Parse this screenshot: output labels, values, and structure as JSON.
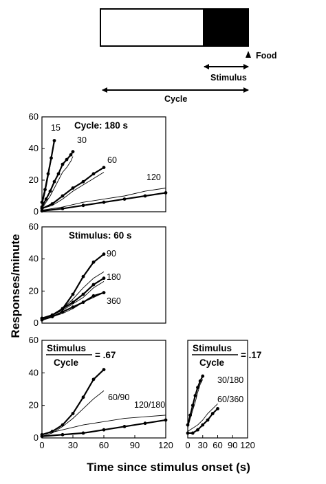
{
  "schematic": {
    "food_label": "Food",
    "stimulus_label": "Stimulus",
    "cycle_label": "Cycle"
  },
  "axes": {
    "ylabel": "Responses/minute",
    "xlabel": "Time since stimulus onset (s)"
  },
  "chart_data": [
    {
      "type": "line",
      "panel": "top",
      "title": "Cycle: 180 s",
      "xlim": [
        0,
        120
      ],
      "ylim": [
        0,
        60
      ],
      "xticks": [],
      "yticks": [
        "0",
        "20",
        "40",
        "60"
      ],
      "series": [
        {
          "name": "15",
          "label": "15",
          "data_x": [
            0,
            3,
            6,
            9,
            12
          ],
          "data_y": [
            6,
            14,
            24,
            34,
            45
          ],
          "model_x": [
            0,
            3,
            6,
            9,
            12
          ],
          "model_y": [
            4,
            12,
            22,
            33,
            44
          ]
        },
        {
          "name": "30",
          "label": "30",
          "data_x": [
            0,
            4,
            8,
            12,
            16,
            20,
            24,
            28,
            30
          ],
          "data_y": [
            3,
            8,
            13,
            19,
            24,
            30,
            33,
            36,
            38
          ],
          "model_x": [
            0,
            4,
            8,
            12,
            16,
            20,
            24,
            28,
            30
          ],
          "model_y": [
            2,
            6,
            10,
            15,
            20,
            25,
            28,
            32,
            35
          ]
        },
        {
          "name": "60",
          "label": "60",
          "data_x": [
            0,
            10,
            20,
            30,
            40,
            50,
            60
          ],
          "data_y": [
            2,
            5,
            10,
            15,
            19,
            24,
            28
          ],
          "model_x": [
            0,
            10,
            20,
            30,
            40,
            50,
            60
          ],
          "model_y": [
            2,
            4,
            8,
            13,
            17,
            21,
            25
          ]
        },
        {
          "name": "120",
          "label": "120",
          "data_x": [
            0,
            20,
            40,
            60,
            80,
            100,
            120
          ],
          "data_y": [
            0.5,
            2,
            4,
            6,
            8,
            10,
            12
          ],
          "model_x": [
            0,
            20,
            40,
            60,
            80,
            100,
            120
          ],
          "model_y": [
            1,
            3,
            6,
            8,
            10,
            13,
            15
          ]
        }
      ]
    },
    {
      "type": "line",
      "panel": "middle",
      "title": "Stimulus: 60 s",
      "xlim": [
        0,
        120
      ],
      "ylim": [
        0,
        60
      ],
      "xticks": [],
      "yticks": [
        "0",
        "20",
        "40",
        "60"
      ],
      "series": [
        {
          "name": "90",
          "label": "90",
          "data_x": [
            0,
            10,
            20,
            30,
            40,
            50,
            60
          ],
          "data_y": [
            3,
            5,
            9,
            18,
            29,
            38,
            43
          ],
          "model_x": [
            0,
            10,
            20,
            30,
            40,
            50,
            60
          ],
          "model_y": [
            3,
            5,
            9,
            15,
            22,
            28,
            32
          ]
        },
        {
          "name": "180",
          "label": "180",
          "data_x": [
            0,
            10,
            20,
            30,
            40,
            50,
            60
          ],
          "data_y": [
            3,
            5,
            9,
            13,
            18,
            24,
            28
          ],
          "model_x": [
            0,
            10,
            20,
            30,
            40,
            50,
            60
          ],
          "model_y": [
            3,
            5,
            8,
            12,
            16,
            22,
            26
          ]
        },
        {
          "name": "360",
          "label": "360",
          "data_x": [
            0,
            10,
            20,
            30,
            40,
            50,
            60
          ],
          "data_y": [
            2,
            4,
            7,
            10,
            13,
            17,
            19
          ],
          "model_x": [
            0,
            10,
            20,
            30,
            40,
            50,
            60
          ],
          "model_y": [
            2,
            4,
            6,
            9,
            13,
            16,
            19
          ]
        }
      ]
    },
    {
      "type": "line",
      "panel": "bottom-left",
      "title_top": "Stimulus",
      "title_bottom": "Cycle",
      "title_value": "= .67",
      "xlim": [
        0,
        120
      ],
      "ylim": [
        0,
        60
      ],
      "xticks": [
        "0",
        "30",
        "60",
        "90",
        "120"
      ],
      "yticks": [
        "0",
        "20",
        "40",
        "60"
      ],
      "series": [
        {
          "name": "60/90",
          "label": "60/90",
          "data_x": [
            0,
            10,
            20,
            30,
            40,
            50,
            60
          ],
          "data_y": [
            2,
            4,
            8,
            15,
            25,
            36,
            42
          ],
          "model_x": [
            0,
            10,
            20,
            30,
            40,
            50,
            60
          ],
          "model_y": [
            1,
            3,
            7,
            12,
            18,
            24,
            29
          ]
        },
        {
          "name": "120/180",
          "label": "120/180",
          "data_x": [
            0,
            20,
            40,
            60,
            80,
            100,
            120
          ],
          "data_y": [
            1,
            2,
            3,
            5,
            7,
            9,
            11
          ],
          "model_x": [
            0,
            20,
            40,
            60,
            80,
            100,
            120
          ],
          "model_y": [
            2,
            5,
            8,
            10,
            12,
            13,
            14
          ]
        }
      ]
    },
    {
      "type": "line",
      "panel": "bottom-right",
      "title_top": "Stimulus",
      "title_bottom": "Cycle",
      "title_value": "= .17",
      "xlim": [
        0,
        120
      ],
      "ylim": [
        0,
        60
      ],
      "xticks": [
        "0",
        "30",
        "60",
        "90",
        "120"
      ],
      "yticks": [],
      "series": [
        {
          "name": "30/180",
          "label": "30/180",
          "data_x": [
            0,
            5,
            10,
            15,
            20,
            25,
            30
          ],
          "data_y": [
            8,
            14,
            20,
            26,
            31,
            35,
            38
          ],
          "model_x": [
            0,
            5,
            10,
            15,
            20,
            25,
            30
          ],
          "model_y": [
            6,
            12,
            17,
            22,
            28,
            33,
            36
          ]
        },
        {
          "name": "60/360",
          "label": "60/360",
          "data_x": [
            0,
            10,
            20,
            30,
            40,
            50,
            60
          ],
          "data_y": [
            3,
            3,
            5,
            8,
            11,
            15,
            18
          ],
          "model_x": [
            0,
            10,
            20,
            30,
            40,
            50,
            60
          ],
          "model_y": [
            4,
            6,
            8,
            11,
            15,
            18,
            21
          ]
        }
      ]
    }
  ]
}
